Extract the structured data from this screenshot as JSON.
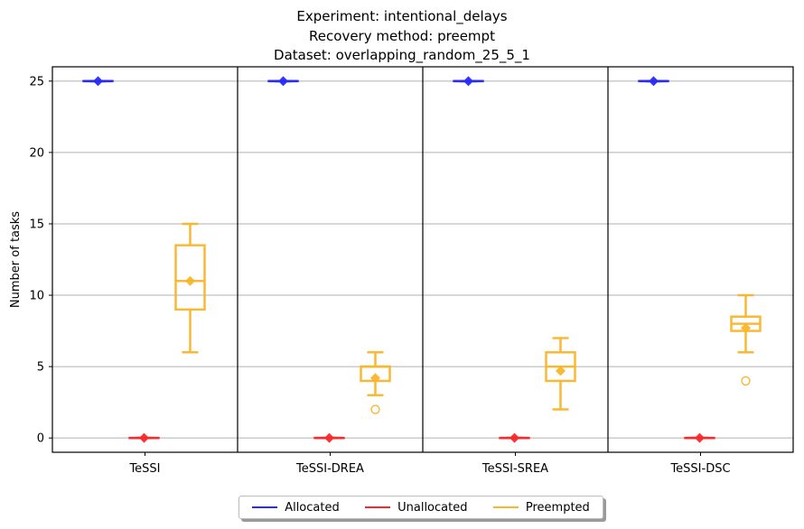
{
  "title_lines": [
    "Experiment: intentional_delays",
    "Recovery method: preempt",
    "Dataset: overlapping_random_25_5_1"
  ],
  "chart_data": {
    "type": "box",
    "categories": [
      "TeSSI",
      "TeSSI-DREA",
      "TeSSI-SREA",
      "TeSSI-DSC"
    ],
    "ylabel": "Number of tasks",
    "xlabel": "",
    "ylim": [
      -1,
      26
    ],
    "yticks": [
      0,
      5,
      10,
      15,
      20,
      25
    ],
    "grid": "y",
    "legend_position": "bottom-center",
    "series": [
      {
        "name": "Allocated",
        "color": "#2b2bf7",
        "boxes": [
          {
            "whislo": 25,
            "q1": 25,
            "med": 25,
            "q3": 25,
            "whishi": 25,
            "mean": 25,
            "fliers": []
          },
          {
            "whislo": 25,
            "q1": 25,
            "med": 25,
            "q3": 25,
            "whishi": 25,
            "mean": 25,
            "fliers": []
          },
          {
            "whislo": 25,
            "q1": 25,
            "med": 25,
            "q3": 25,
            "whishi": 25,
            "mean": 25,
            "fliers": []
          },
          {
            "whislo": 25,
            "q1": 25,
            "med": 25,
            "q3": 25,
            "whishi": 25,
            "mean": 25,
            "fliers": []
          }
        ]
      },
      {
        "name": "Unallocated",
        "color": "#f52b2b",
        "boxes": [
          {
            "whislo": 0,
            "q1": 0,
            "med": 0,
            "q3": 0,
            "whishi": 0,
            "mean": 0,
            "fliers": []
          },
          {
            "whislo": 0,
            "q1": 0,
            "med": 0,
            "q3": 0,
            "whishi": 0,
            "mean": 0,
            "fliers": []
          },
          {
            "whislo": 0,
            "q1": 0,
            "med": 0,
            "q3": 0,
            "whishi": 0,
            "mean": 0,
            "fliers": []
          },
          {
            "whislo": 0,
            "q1": 0,
            "med": 0,
            "q3": 0,
            "whishi": 0,
            "mean": 0,
            "fliers": []
          }
        ]
      },
      {
        "name": "Preempted",
        "color": "#f9b52b",
        "boxes": [
          {
            "whislo": 6,
            "q1": 9,
            "med": 11,
            "q3": 13.5,
            "whishi": 15,
            "mean": 11,
            "fliers": []
          },
          {
            "whislo": 3,
            "q1": 4,
            "med": 5,
            "q3": 5,
            "whishi": 6,
            "mean": 4.2,
            "fliers": [
              2
            ]
          },
          {
            "whislo": 2,
            "q1": 4,
            "med": 5,
            "q3": 6,
            "whishi": 7,
            "mean": 4.7,
            "fliers": []
          },
          {
            "whislo": 6,
            "q1": 7.5,
            "med": 8,
            "q3": 8.5,
            "whishi": 10,
            "mean": 7.7,
            "fliers": [
              4
            ]
          }
        ]
      }
    ]
  }
}
